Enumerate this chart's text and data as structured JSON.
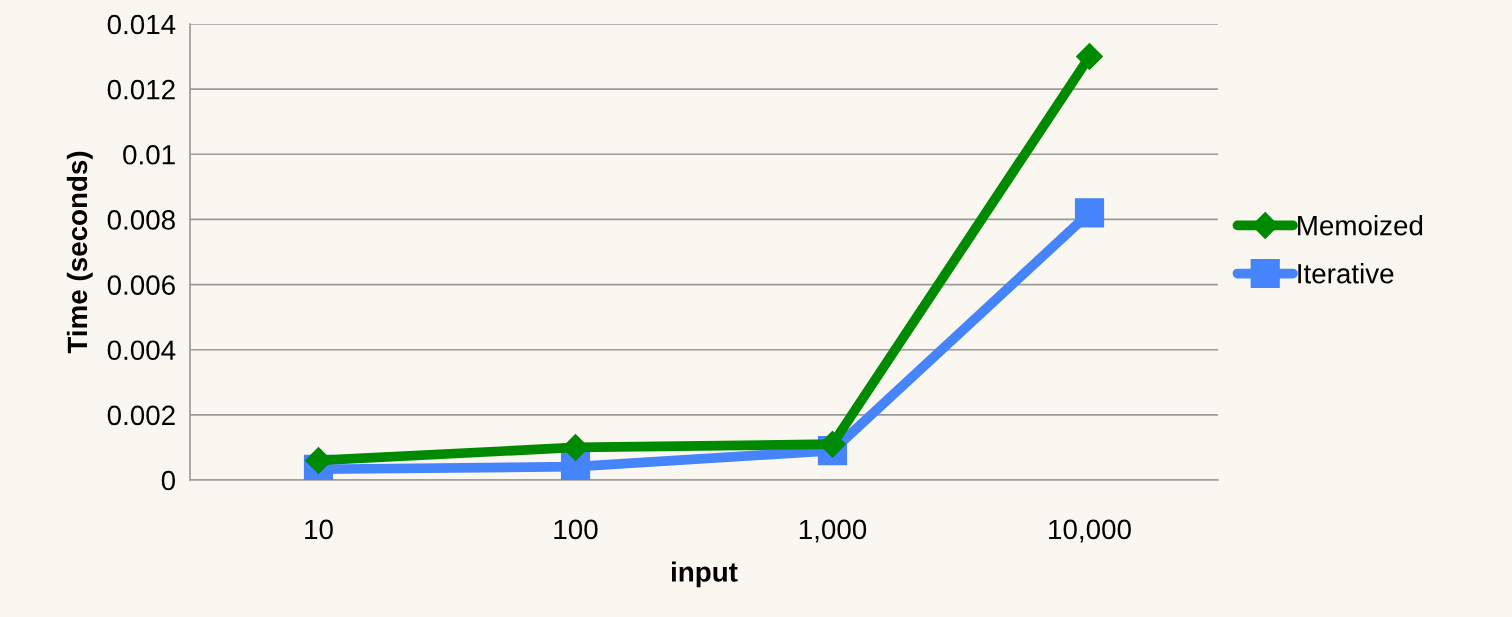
{
  "chart_data": {
    "type": "line",
    "xlabel": "input",
    "ylabel": "Time (seconds)",
    "categories": [
      "10",
      "100",
      "1,000",
      "10,000"
    ],
    "series": [
      {
        "name": "Memoized",
        "color": "#008a00",
        "marker": "diamond",
        "values": [
          0.0006,
          0.001,
          0.0011,
          0.013
        ]
      },
      {
        "name": "Iterative",
        "color": "#4684fc",
        "marker": "square",
        "values": [
          0.00033,
          0.00041,
          0.0009,
          0.0082
        ]
      }
    ],
    "ylim": [
      0,
      0.014
    ],
    "yticks": [
      0,
      0.002,
      0.004,
      0.006,
      0.008,
      0.01,
      0.012,
      0.014
    ],
    "grid": "y",
    "legend": "right",
    "line_style": "solid"
  }
}
